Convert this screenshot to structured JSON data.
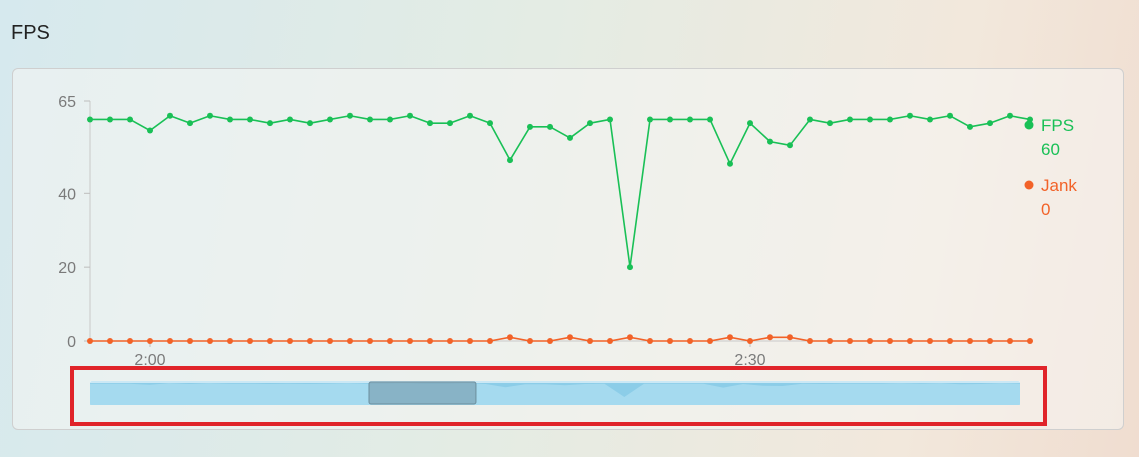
{
  "page": {
    "title": "FPS"
  },
  "colors": {
    "fps": "#19c056",
    "jank": "#f26228",
    "zoom_fill": "#8ccde8",
    "zoom_handle": "#7fa6b8",
    "highlight": "#e0242a"
  },
  "legend": [
    {
      "name": "FPS",
      "value": "60",
      "color": "#19c056"
    },
    {
      "name": "Jank",
      "value": "0",
      "color": "#f26228"
    }
  ],
  "zoom_slider": {
    "window_start": 0.3,
    "window_end": 0.415,
    "highlighted": true
  },
  "chart_data": {
    "type": "line",
    "title": "FPS",
    "ylim": [
      0,
      65
    ],
    "y_ticks": [
      "65",
      "40",
      "20",
      "0"
    ],
    "y_tick_values": [
      65,
      40,
      20,
      0
    ],
    "x_ticks": [
      {
        "label": "2:00",
        "index": 3
      },
      {
        "label": "2:30",
        "index": 33
      }
    ],
    "grid": false,
    "legend_position": "right",
    "series": [
      {
        "name": "FPS",
        "values": [
          60,
          60,
          60,
          57,
          61,
          59,
          61,
          60,
          60,
          59,
          60,
          59,
          60,
          61,
          60,
          60,
          61,
          59,
          59,
          61,
          59,
          49,
          58,
          58,
          55,
          59,
          60,
          20,
          60,
          60,
          60,
          60,
          48,
          59,
          54,
          53,
          60,
          59,
          60,
          60,
          60,
          61,
          60,
          61,
          58,
          59,
          61,
          60
        ]
      },
      {
        "name": "Jank",
        "values": [
          0,
          0,
          0,
          0,
          0,
          0,
          0,
          0,
          0,
          0,
          0,
          0,
          0,
          0,
          0,
          0,
          0,
          0,
          0,
          0,
          0,
          1,
          0,
          0,
          1,
          0,
          0,
          1,
          0,
          0,
          0,
          0,
          1,
          0,
          1,
          1,
          0,
          0,
          0,
          0,
          0,
          0,
          0,
          0,
          0,
          0,
          0,
          0
        ]
      }
    ]
  }
}
